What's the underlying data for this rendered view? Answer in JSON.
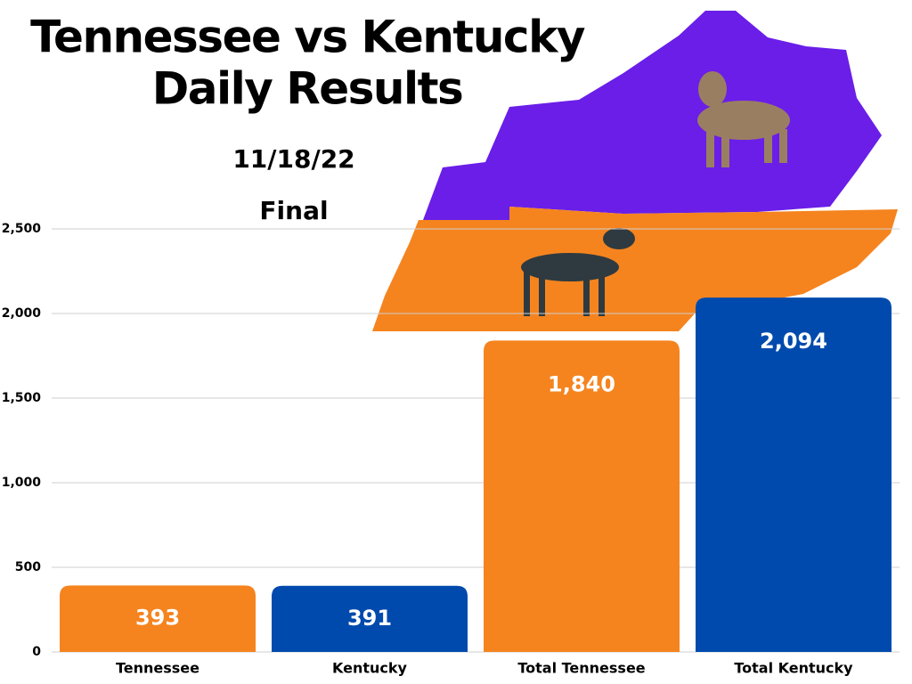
{
  "chart_data": {
    "type": "bar",
    "title": "Tennessee vs Kentucky Daily Results",
    "subtitle": "11/18/22",
    "annotation": "Final",
    "categories": [
      "Tennessee",
      "Kentucky",
      "Total Tennessee",
      "Total Kentucky"
    ],
    "values": [
      393,
      391,
      1840,
      2094
    ],
    "value_labels": [
      "393",
      "391",
      "1,840",
      "2,094"
    ],
    "colors": [
      "#f5841f",
      "#004aad",
      "#f5841f",
      "#004aad"
    ],
    "ylim": [
      0,
      2500
    ],
    "yticks": [
      0,
      500,
      {
        "value": 1000,
        "label": "1,000"
      },
      {
        "value": 1500,
        "label": "1,500"
      },
      {
        "value": 2000,
        "label": "2,000"
      },
      {
        "value": 2500,
        "label": "2,500"
      }
    ],
    "grid": true
  }
}
